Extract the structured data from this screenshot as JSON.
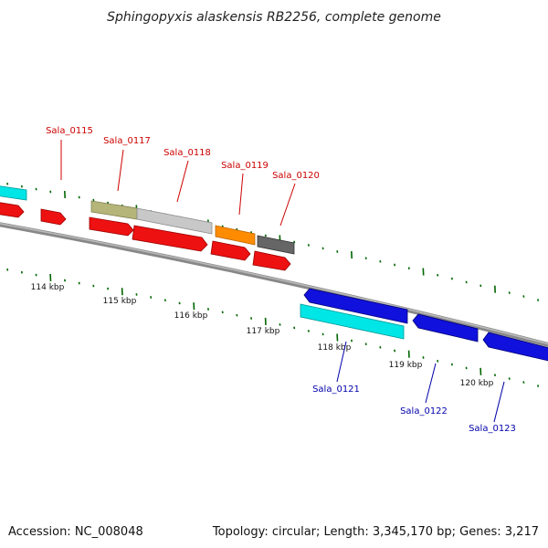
{
  "title": "Sphingopyxis alaskensis RB2256, complete genome",
  "footer": {
    "accession": "Accession: NC_008048",
    "topology": "Topology: circular; Length: 3,345,170 bp; Genes: 3,217"
  },
  "kbp_labels": [
    "114 kbp",
    "115 kbp",
    "116 kbp",
    "117 kbp",
    "118 kbp",
    "119 kbp",
    "120 kbp"
  ],
  "gene_labels": {
    "forward": [
      "Sala_0115",
      "Sala_0117",
      "Sala_0118",
      "Sala_0119",
      "Sala_0120"
    ],
    "reverse": [
      "Sala_0121",
      "Sala_0122",
      "Sala_0123"
    ]
  },
  "colors": {
    "forward_label": "#cc0000",
    "reverse_label": "#0000aa",
    "cds_forward": "#ee1111",
    "cds_reverse": "#1111dd",
    "cyan_feature": "#00e5e5",
    "olive_feature": "#b5b57a",
    "gray_feature": "#c4c4c4",
    "orange_feature": "#ff8c00",
    "dark_feature": "#666666",
    "backbone": "#888888",
    "ticks": "#006600"
  }
}
